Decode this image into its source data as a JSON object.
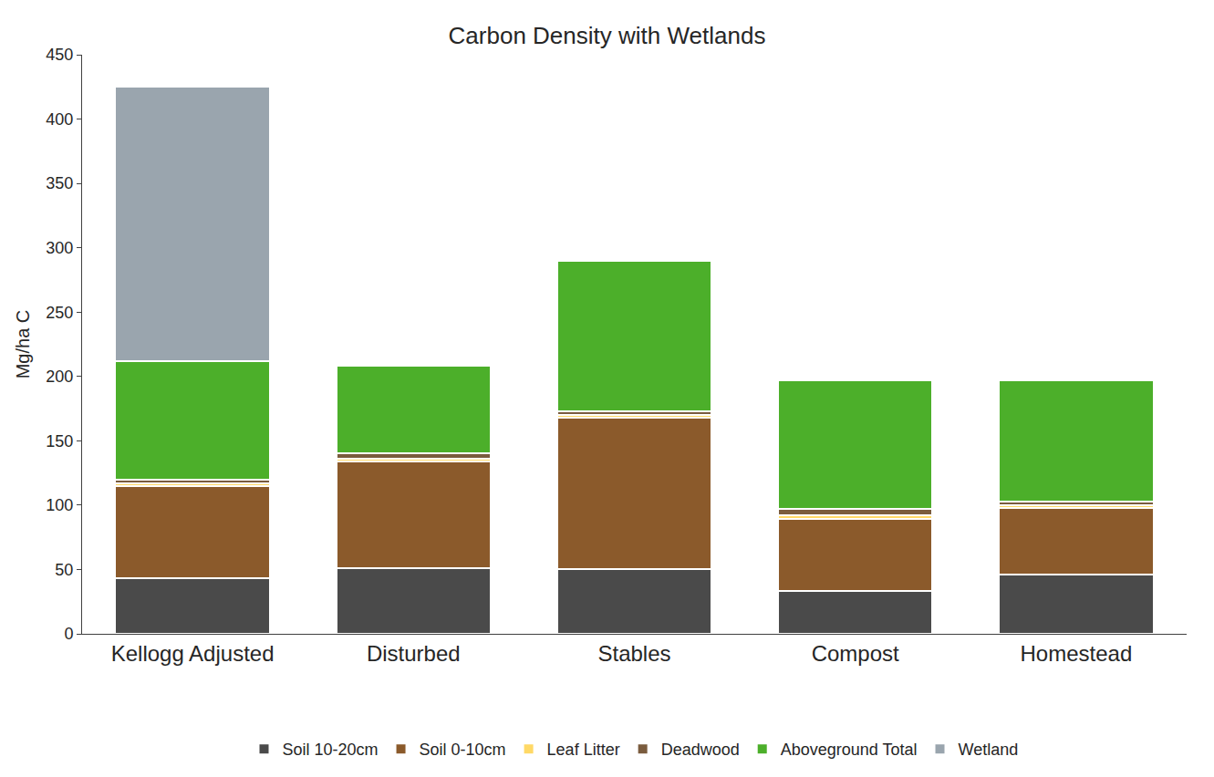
{
  "chart_data": {
    "type": "bar",
    "title": "Carbon Density with Wetlands",
    "y_label": "Mg/ha C",
    "categories": [
      "Kellogg Adjusted",
      "Disturbed",
      "Stables",
      "Compost",
      "Homestead"
    ],
    "stacked": true,
    "grid": false,
    "legend": "bottom",
    "ylim": [
      0,
      450
    ],
    "yticks": [
      0,
      50,
      100,
      150,
      200,
      250,
      300,
      350,
      400,
      450
    ],
    "series": [
      {
        "name": "Soil 10-20cm",
        "color": "#4a4a4a",
        "values": [
          43,
          51,
          50,
          33,
          46
        ]
      },
      {
        "name": "Soil 0-10cm",
        "color": "#8b5a2b",
        "values": [
          72,
          83,
          118,
          56,
          52
        ]
      },
      {
        "name": "Leaf Litter",
        "color": "#ffd966",
        "values": [
          2,
          2,
          2,
          3,
          2
        ]
      },
      {
        "name": "Deadwood",
        "color": "#7a5c3e",
        "values": [
          3,
          4,
          3,
          5,
          3
        ]
      },
      {
        "name": "Aboveground Total",
        "color": "#4caf2a",
        "values": [
          92,
          68,
          117,
          100,
          94
        ]
      },
      {
        "name": "Wetland",
        "color": "#9aa5ae",
        "values": [
          213,
          0,
          0,
          0,
          0
        ]
      }
    ]
  }
}
